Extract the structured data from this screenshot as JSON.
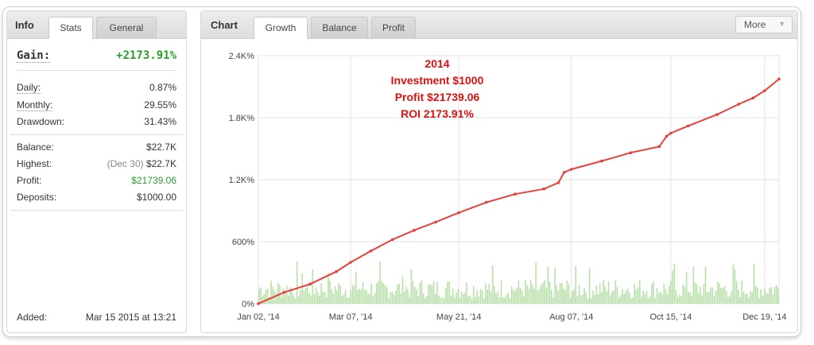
{
  "left": {
    "title": "Info",
    "tabs": [
      "Stats",
      "General"
    ],
    "gain": {
      "label": "Gain:",
      "value": "+2173.91%"
    },
    "stats": [
      {
        "key": "Daily:",
        "value": "0.87%"
      },
      {
        "key": "Monthly:",
        "value": "29.55%"
      },
      {
        "key": "Drawdown:",
        "value": "31.43%"
      }
    ],
    "balance": [
      {
        "key": "Balance:",
        "value": "$22.7K"
      },
      {
        "key": "Highest:",
        "note": "(Dec 30)",
        "value": "$22.7K"
      },
      {
        "key": "Profit:",
        "value": "$21739.06"
      },
      {
        "key": "Deposits:",
        "value": "$1000.00"
      }
    ],
    "added": {
      "key": "Added:",
      "value": "Mar 15 2015 at 13:21"
    }
  },
  "right": {
    "title": "Chart",
    "tabs": [
      "Growth",
      "Balance",
      "Profit"
    ],
    "more_label": "More"
  },
  "colors": {
    "line": "#e8413c",
    "bars": "#b9e0aa",
    "gain_green": "#2a9d2a",
    "annotation": "#e01010",
    "grid": "#e3e3e3"
  },
  "chart_data": {
    "type": "line",
    "ylim": [
      0,
      2400
    ],
    "y_ticks": [
      {
        "value": 0,
        "label": "0%"
      },
      {
        "value": 600,
        "label": "600%"
      },
      {
        "value": 1200,
        "label": "1.2K%"
      },
      {
        "value": 1800,
        "label": "1.8K%"
      },
      {
        "value": 2400,
        "label": "2.4K%"
      }
    ],
    "x_ticks": [
      "Jan 02, '14",
      "Mar 07, '14",
      "May 21, '14",
      "Aug 07, '14",
      "Oct 15, '14",
      "Dec 19, '14"
    ],
    "x_tick_days": [
      2,
      66,
      141,
      219,
      288,
      353
    ],
    "x_range_days": [
      2,
      363
    ],
    "annotation": [
      "2014",
      "Investment $1000",
      "Profit $21739.06",
      "ROI 2173.91%"
    ],
    "series": [
      {
        "role": "growth",
        "x_days": [
          2,
          20,
          38,
          56,
          66,
          80,
          95,
          110,
          125,
          141,
          160,
          180,
          200,
          210,
          214,
          219,
          240,
          260,
          280,
          285,
          288,
          300,
          320,
          335,
          345,
          353,
          363
        ],
        "y": [
          0,
          110,
          190,
          310,
          400,
          510,
          620,
          710,
          790,
          880,
          980,
          1060,
          1110,
          1170,
          1270,
          1300,
          1380,
          1460,
          1520,
          1620,
          1650,
          1720,
          1830,
          1930,
          1990,
          2060,
          2174
        ]
      }
    ]
  }
}
